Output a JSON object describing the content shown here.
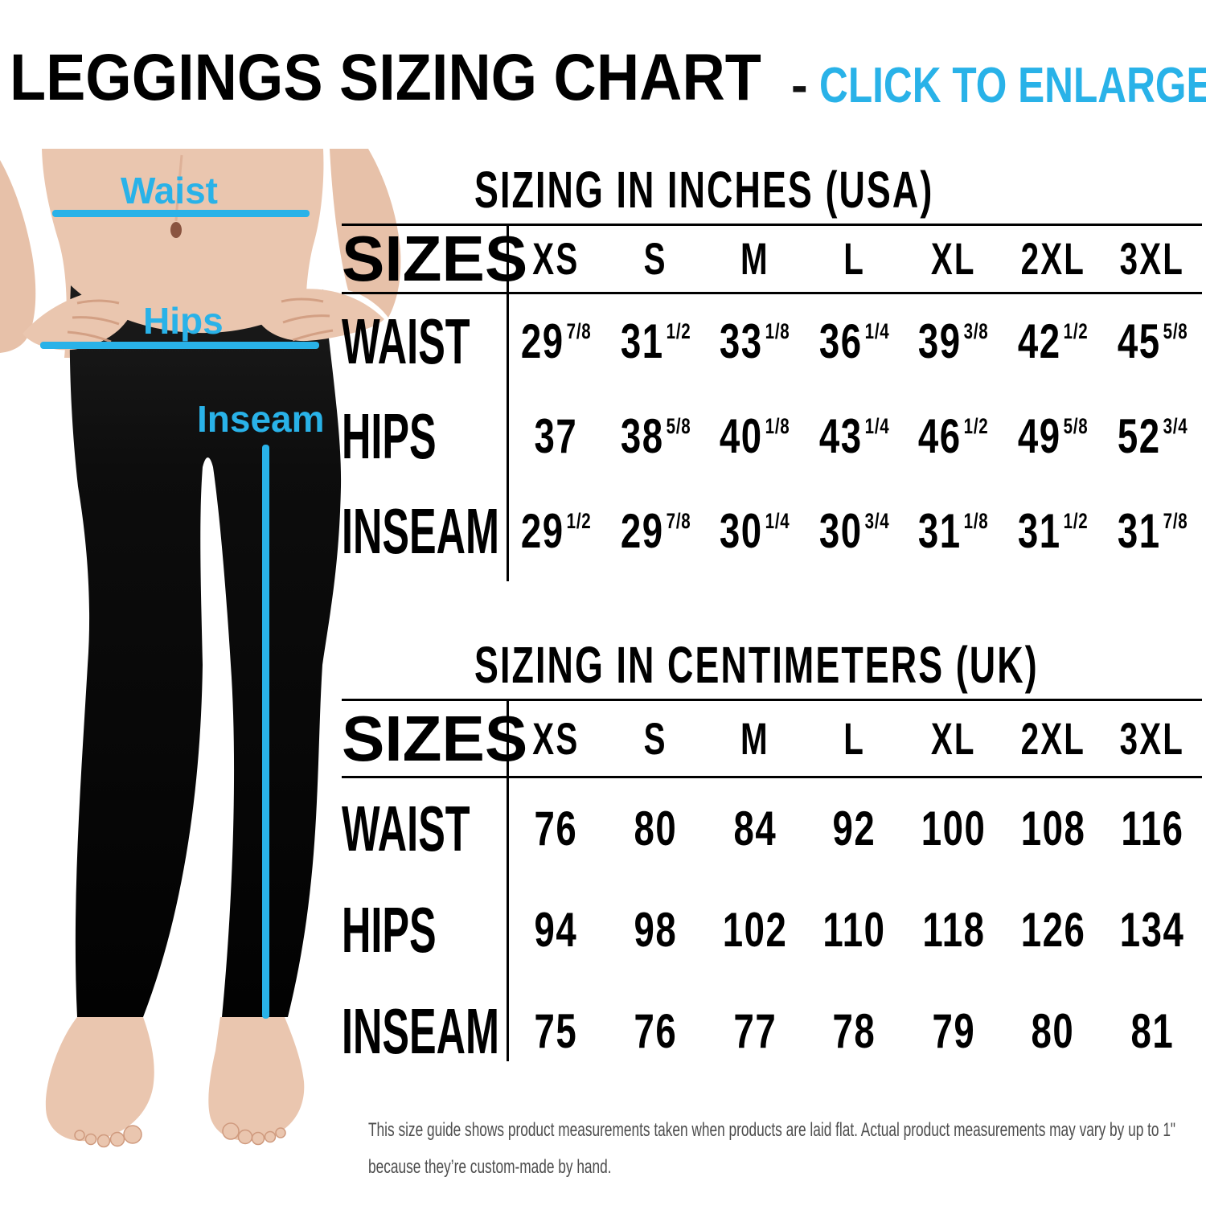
{
  "page": {
    "title": "LEGGINGS SIZING CHART",
    "dash": "-",
    "cta": "CLICK TO ENLARGE"
  },
  "colors": {
    "accent": "#29b2e8",
    "text": "#000000",
    "footer_text": "#4d4d4d",
    "skin": "#eac6af",
    "leggings": "#0a0a0a"
  },
  "figure": {
    "labels": {
      "waist": "Waist",
      "hips": "Hips",
      "inseam": "Inseam"
    }
  },
  "tables": [
    {
      "title": "SIZING IN INCHES (USA)",
      "header_label": "SIZES",
      "columns": [
        "XS",
        "S",
        "M",
        "L",
        "XL",
        "2XL",
        "3XL"
      ],
      "rows": [
        {
          "label": "WAIST",
          "values": [
            {
              "v": "29",
              "f": "7/8"
            },
            {
              "v": "31",
              "f": "1/2"
            },
            {
              "v": "33",
              "f": "1/8"
            },
            {
              "v": "36",
              "f": "1/4"
            },
            {
              "v": "39",
              "f": "3/8"
            },
            {
              "v": "42",
              "f": "1/2"
            },
            {
              "v": "45",
              "f": "5/8"
            }
          ]
        },
        {
          "label": "HIPS",
          "values": [
            {
              "v": "37",
              "f": ""
            },
            {
              "v": "38",
              "f": "5/8"
            },
            {
              "v": "40",
              "f": "1/8"
            },
            {
              "v": "43",
              "f": "1/4"
            },
            {
              "v": "46",
              "f": "1/2"
            },
            {
              "v": "49",
              "f": "5/8"
            },
            {
              "v": "52",
              "f": "3/4"
            }
          ]
        },
        {
          "label": "INSEAM",
          "values": [
            {
              "v": "29",
              "f": "1/2"
            },
            {
              "v": "29",
              "f": "7/8"
            },
            {
              "v": "30",
              "f": "1/4"
            },
            {
              "v": "30",
              "f": "3/4"
            },
            {
              "v": "31",
              "f": "1/8"
            },
            {
              "v": "31",
              "f": "1/2"
            },
            {
              "v": "31",
              "f": "7/8"
            }
          ]
        }
      ]
    },
    {
      "title": "SIZING IN CENTIMETERS (UK)",
      "header_label": "SIZES",
      "columns": [
        "XS",
        "S",
        "M",
        "L",
        "XL",
        "2XL",
        "3XL"
      ],
      "rows": [
        {
          "label": "WAIST",
          "values": [
            {
              "v": "76",
              "f": ""
            },
            {
              "v": "80",
              "f": ""
            },
            {
              "v": "84",
              "f": ""
            },
            {
              "v": "92",
              "f": ""
            },
            {
              "v": "100",
              "f": ""
            },
            {
              "v": "108",
              "f": ""
            },
            {
              "v": "116",
              "f": ""
            }
          ]
        },
        {
          "label": "HIPS",
          "values": [
            {
              "v": "94",
              "f": ""
            },
            {
              "v": "98",
              "f": ""
            },
            {
              "v": "102",
              "f": ""
            },
            {
              "v": "110",
              "f": ""
            },
            {
              "v": "118",
              "f": ""
            },
            {
              "v": "126",
              "f": ""
            },
            {
              "v": "134",
              "f": ""
            }
          ]
        },
        {
          "label": "INSEAM",
          "values": [
            {
              "v": "75",
              "f": ""
            },
            {
              "v": "76",
              "f": ""
            },
            {
              "v": "77",
              "f": ""
            },
            {
              "v": "78",
              "f": ""
            },
            {
              "v": "79",
              "f": ""
            },
            {
              "v": "80",
              "f": ""
            },
            {
              "v": "81",
              "f": ""
            }
          ]
        }
      ]
    }
  ],
  "footer": {
    "line1": "This size guide shows product measurements taken when products are laid flat. Actual product measurements may vary by up to 1\"",
    "line2": "because they’re custom-made by hand."
  },
  "chart_data": [
    {
      "type": "table",
      "title": "SIZING IN INCHES (USA)",
      "columns": [
        "XS",
        "S",
        "M",
        "L",
        "XL",
        "2XL",
        "3XL"
      ],
      "rows": [
        {
          "label": "WAIST",
          "values": [
            "29 7/8",
            "31 1/2",
            "33 1/8",
            "36 1/4",
            "39 3/8",
            "42 1/2",
            "45 5/8"
          ]
        },
        {
          "label": "HIPS",
          "values": [
            "37",
            "38 5/8",
            "40 1/8",
            "43 1/4",
            "46 1/2",
            "49 5/8",
            "52 3/4"
          ]
        },
        {
          "label": "INSEAM",
          "values": [
            "29 1/2",
            "29 7/8",
            "30 1/4",
            "30 3/4",
            "31 1/8",
            "31 1/2",
            "31 7/8"
          ]
        }
      ]
    },
    {
      "type": "table",
      "title": "SIZING IN CENTIMETERS (UK)",
      "columns": [
        "XS",
        "S",
        "M",
        "L",
        "XL",
        "2XL",
        "3XL"
      ],
      "rows": [
        {
          "label": "WAIST",
          "values": [
            "76",
            "80",
            "84",
            "92",
            "100",
            "108",
            "116"
          ]
        },
        {
          "label": "HIPS",
          "values": [
            "94",
            "98",
            "102",
            "110",
            "118",
            "126",
            "134"
          ]
        },
        {
          "label": "INSEAM",
          "values": [
            "75",
            "76",
            "77",
            "78",
            "79",
            "80",
            "81"
          ]
        }
      ]
    }
  ]
}
